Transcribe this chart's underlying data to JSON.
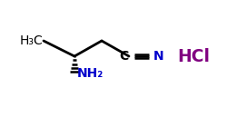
{
  "background_color": "#ffffff",
  "hcl_text": "HCl",
  "hcl_color": "#800080",
  "nh2_text": "NH₂",
  "nh2_color": "#0000cc",
  "n_text": "N",
  "n_color": "#0000cc",
  "c_text": "C",
  "c_color": "#000000",
  "h3c_text": "H₃C",
  "bond_color": "#000000",
  "figsize": [
    2.5,
    1.4
  ],
  "dpi": 100
}
